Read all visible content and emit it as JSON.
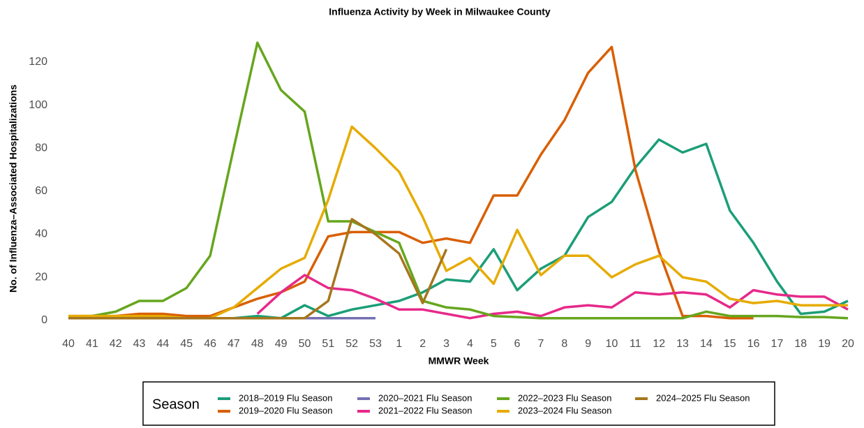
{
  "chart_data": {
    "type": "line",
    "title": "Influenza Activity by Week in Milwaukee County",
    "x_label": "MMWR Week",
    "y_label": "No. of Influenza–Associated Hospitalizations",
    "legend_title": "Season",
    "grid": false,
    "categories": [
      "40",
      "41",
      "42",
      "43",
      "44",
      "45",
      "46",
      "47",
      "48",
      "49",
      "50",
      "51",
      "52",
      "53",
      "1",
      "2",
      "3",
      "4",
      "5",
      "6",
      "7",
      "8",
      "9",
      "10",
      "11",
      "12",
      "13",
      "14",
      "15",
      "16",
      "17",
      "18",
      "19",
      "20"
    ],
    "ylim": [
      -3,
      131
    ],
    "yticks": [
      0,
      20,
      40,
      60,
      80,
      100,
      120
    ],
    "series": [
      {
        "name": "2018–2019 Flu Season",
        "color": "#1b9e77",
        "values": [
          1,
          1,
          1,
          1,
          1,
          1,
          1,
          1,
          2,
          1,
          7,
          2,
          5,
          7,
          9,
          13,
          19,
          18,
          33,
          14,
          24,
          30,
          48,
          55,
          71,
          84,
          78,
          82,
          51,
          36,
          18,
          3,
          4,
          9
        ]
      },
      {
        "name": "2019–2020 Flu Season",
        "color": "#d95f02",
        "values": [
          2,
          2,
          2,
          3,
          3,
          2,
          2,
          6,
          10,
          13,
          18,
          39,
          41,
          41,
          41,
          36,
          38,
          36,
          58,
          58,
          77,
          93,
          115,
          127,
          70,
          32,
          2,
          2,
          1,
          1,
          null,
          null,
          null,
          null
        ]
      },
      {
        "name": "2020–2021 Flu Season",
        "color": "#7570b3",
        "values": [
          1,
          1,
          1,
          1,
          1,
          1,
          1,
          1,
          1,
          1,
          1,
          1,
          1,
          1,
          null,
          null,
          null,
          null,
          null,
          null,
          null,
          null,
          null,
          null,
          null,
          null,
          null,
          null,
          null,
          null,
          null,
          null,
          null,
          null
        ]
      },
      {
        "name": "2021–2022 Flu Season",
        "color": "#e7298a",
        "values": [
          null,
          null,
          null,
          null,
          null,
          null,
          null,
          null,
          3,
          13,
          21,
          15,
          14,
          10,
          5,
          5,
          3,
          1,
          3,
          4,
          2,
          6,
          7,
          6,
          13,
          12,
          13,
          12,
          6,
          14,
          12,
          11,
          11,
          5
        ]
      },
      {
        "name": "2022–2023 Flu Season",
        "color": "#66a61e",
        "values": [
          1,
          2,
          4,
          9,
          9,
          15,
          30,
          80,
          129,
          107,
          97,
          46,
          46,
          41,
          36,
          9,
          6,
          5,
          2,
          1.5,
          1,
          1,
          1,
          1,
          1,
          1,
          1,
          4,
          2,
          2,
          2,
          1.5,
          1.5,
          1
        ]
      },
      {
        "name": "2023–2024 Flu Season",
        "color": "#e6ab02",
        "values": [
          2,
          2,
          2,
          2,
          2,
          1,
          1,
          6,
          15,
          24,
          29,
          56,
          90,
          80,
          69,
          48,
          23,
          29,
          17,
          42,
          21,
          30,
          30,
          20,
          26,
          30,
          20,
          18,
          10,
          8,
          9,
          7,
          7,
          7
        ]
      },
      {
        "name": "2024–2025 Flu Season",
        "color": "#a6761d",
        "values": [
          1,
          1,
          1,
          1,
          1,
          1,
          1,
          1,
          1,
          1,
          1,
          9,
          47,
          40,
          31,
          8,
          33,
          null,
          null,
          null,
          null,
          null,
          null,
          null,
          null,
          null,
          null,
          null,
          null,
          null,
          null,
          null,
          null,
          null
        ]
      }
    ]
  }
}
